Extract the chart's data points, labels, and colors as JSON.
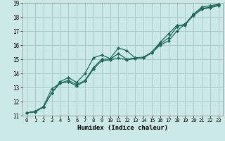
{
  "title": "",
  "xlabel": "Humidex (Indice chaleur)",
  "bg_color": "#cce8e8",
  "grid_color": "#aacccc",
  "line_color": "#1a6b5a",
  "xlim": [
    -0.5,
    23.5
  ],
  "ylim": [
    11,
    19
  ],
  "xticks": [
    0,
    1,
    2,
    3,
    4,
    5,
    6,
    7,
    8,
    9,
    10,
    11,
    12,
    13,
    14,
    15,
    16,
    17,
    18,
    19,
    20,
    21,
    22,
    23
  ],
  "yticks": [
    11,
    12,
    13,
    14,
    15,
    16,
    17,
    18,
    19
  ],
  "series": [
    {
      "x": [
        0,
        1,
        2,
        3,
        4,
        5,
        6,
        7,
        8,
        9,
        10,
        11,
        12,
        13,
        14,
        15,
        16,
        17,
        18,
        19,
        20,
        21,
        22,
        23
      ],
      "y": [
        11.2,
        11.25,
        11.6,
        12.6,
        13.4,
        13.7,
        13.35,
        14.0,
        15.1,
        15.3,
        15.05,
        15.8,
        15.6,
        15.1,
        15.15,
        15.5,
        16.2,
        16.8,
        17.4,
        17.4,
        18.2,
        18.7,
        18.8,
        18.9
      ]
    },
    {
      "x": [
        0,
        1,
        2,
        3,
        4,
        5,
        6,
        7,
        8,
        9,
        10,
        11,
        12,
        13,
        14,
        15,
        16,
        17,
        18,
        19,
        20,
        21,
        22,
        23
      ],
      "y": [
        11.2,
        11.3,
        11.65,
        12.9,
        13.3,
        13.5,
        13.2,
        13.5,
        14.4,
        15.0,
        15.0,
        15.4,
        15.0,
        15.1,
        15.1,
        15.5,
        16.1,
        16.5,
        17.3,
        17.5,
        18.2,
        18.6,
        18.7,
        18.85
      ]
    },
    {
      "x": [
        0,
        1,
        2,
        3,
        4,
        5,
        6,
        7,
        8,
        9,
        10,
        11,
        12,
        13,
        14,
        15,
        16,
        17,
        18,
        19,
        20,
        21,
        22,
        23
      ],
      "y": [
        11.2,
        11.3,
        11.6,
        12.6,
        13.3,
        13.4,
        13.1,
        13.45,
        14.3,
        14.9,
        14.95,
        15.1,
        14.95,
        15.05,
        15.1,
        15.45,
        16.0,
        16.3,
        17.0,
        17.5,
        18.1,
        18.55,
        18.65,
        18.8
      ]
    }
  ],
  "xlabel_fontsize": 6.5,
  "tick_fontsize": 5.0,
  "linewidth": 0.9,
  "markersize": 2.2
}
